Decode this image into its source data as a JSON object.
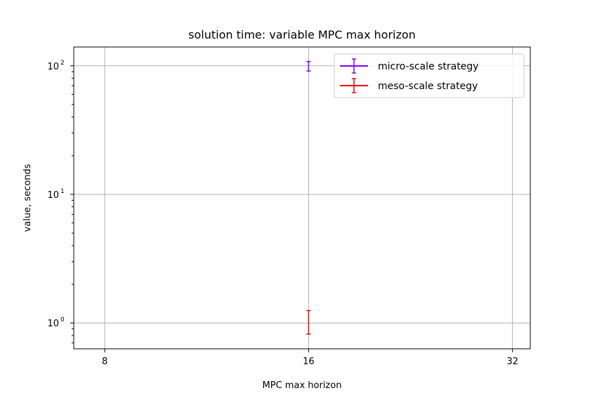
{
  "chart_data": {
    "type": "errorbar",
    "title": "solution time: variable MPC max horizon",
    "xlabel": "MPC max horizon",
    "ylabel": "value, seconds",
    "x_scale": "log2",
    "y_scale": "log10",
    "xlim": [
      7.2,
      34
    ],
    "ylim": [
      0.63,
      140
    ],
    "x_ticks": [
      8,
      16,
      32
    ],
    "x_tick_labels": [
      "8",
      "16",
      "32"
    ],
    "y_ticks": [
      1,
      10,
      100
    ],
    "y_tick_labels": [
      {
        "base": "10",
        "exp": "0"
      },
      {
        "base": "10",
        "exp": "1"
      },
      {
        "base": "10",
        "exp": "2"
      }
    ],
    "grid": true,
    "legend_position": "top-right",
    "series": [
      {
        "name": "micro-scale strategy",
        "color": "#7f00ff",
        "points": [
          {
            "x": 16,
            "y": 99,
            "y_low": 91,
            "y_high": 108
          }
        ]
      },
      {
        "name": "meso-scale strategy",
        "color": "#ff0000",
        "points": [
          {
            "x": 16,
            "y": 1.0,
            "y_low": 0.82,
            "y_high": 1.25
          }
        ]
      }
    ]
  }
}
